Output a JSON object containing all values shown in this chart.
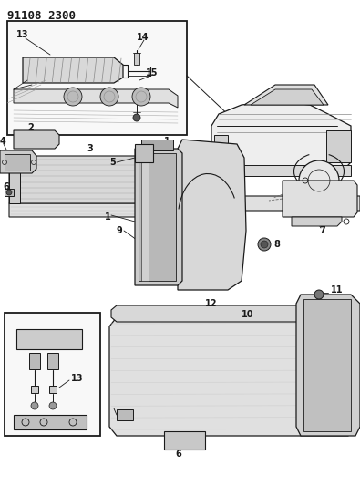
{
  "title": "91108 2300",
  "bg": "#ffffff",
  "lc": "#1a1a1a",
  "fig_w": 3.95,
  "fig_h": 5.33,
  "dpi": 100
}
